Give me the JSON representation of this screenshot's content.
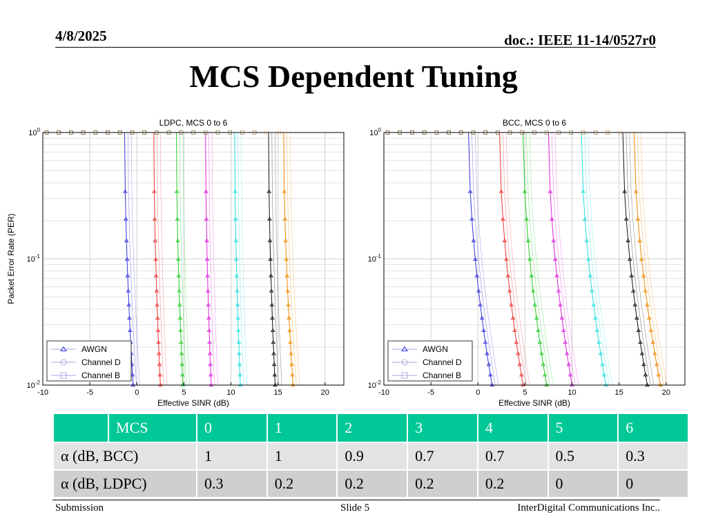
{
  "header": {
    "date": "4/8/2025",
    "doc": "doc.: IEEE 11-14/0527r0"
  },
  "title": "MCS Dependent Tuning",
  "chart_data": [
    {
      "type": "line",
      "title": "LDPC, MCS 0 to 6",
      "xlabel": "Effective SINR (dB)",
      "ylabel": "Packet Error Rate (PER)",
      "xlim": [
        -10,
        22
      ],
      "ylim": [
        0.01,
        1
      ],
      "yscale": "log",
      "grid": true,
      "xticks": [
        "-10",
        "-5",
        "0",
        "5",
        "10",
        "15",
        "20"
      ],
      "yticks": [
        "10^0",
        "10^-1",
        "10^-2"
      ],
      "legend": {
        "position": "bottom-left",
        "entries": [
          "AWGN",
          "Channel D",
          "Channel B"
        ]
      },
      "colors": [
        "#3333dd",
        "#ee3333",
        "#22cc22",
        "#dd22dd",
        "#22dddd",
        "#111111",
        "#ee8800"
      ],
      "series": [
        {
          "name": "MCS 0",
          "x_at_per1": -1.3,
          "x_at_per001": -0.4
        },
        {
          "name": "MCS 1",
          "x_at_per1": 1.8,
          "x_at_per001": 2.5
        },
        {
          "name": "MCS 2",
          "x_at_per1": 4.2,
          "x_at_per001": 4.9
        },
        {
          "name": "MCS 3",
          "x_at_per1": 7.3,
          "x_at_per001": 7.9
        },
        {
          "name": "MCS 4",
          "x_at_per1": 10.4,
          "x_at_per001": 11.0
        },
        {
          "name": "MCS 5",
          "x_at_per1": 14.0,
          "x_at_per001": 14.7
        },
        {
          "name": "MCS 6",
          "x_at_per1": 15.6,
          "x_at_per001": 16.6
        }
      ]
    },
    {
      "type": "line",
      "title": "BCC, MCS 0 to 6",
      "xlabel": "Effective SINR (dB)",
      "ylabel": "",
      "xlim": [
        -10,
        22
      ],
      "ylim": [
        0.01,
        1
      ],
      "yscale": "log",
      "grid": true,
      "xticks": [
        "-10",
        "-5",
        "0",
        "5",
        "10",
        "15",
        "20"
      ],
      "yticks": [
        "10^0",
        "10^-1",
        "10^-2"
      ],
      "legend": {
        "position": "bottom-left",
        "entries": [
          "AWGN",
          "Channel D",
          "Channel B"
        ]
      },
      "colors": [
        "#3333dd",
        "#ee3333",
        "#22cc22",
        "#dd22dd",
        "#22dddd",
        "#111111",
        "#ee8800"
      ],
      "series": [
        {
          "name": "MCS 0",
          "x_at_per1": -1.0,
          "x_at_per001": 1.5
        },
        {
          "name": "MCS 1",
          "x_at_per1": 2.3,
          "x_at_per001": 4.8
        },
        {
          "name": "MCS 2",
          "x_at_per1": 4.8,
          "x_at_per001": 7.3
        },
        {
          "name": "MCS 3",
          "x_at_per1": 7.5,
          "x_at_per001": 10.0
        },
        {
          "name": "MCS 4",
          "x_at_per1": 11.0,
          "x_at_per001": 13.6
        },
        {
          "name": "MCS 5",
          "x_at_per1": 15.4,
          "x_at_per001": 18.0
        },
        {
          "name": "MCS 6",
          "x_at_per1": 16.6,
          "x_at_per001": 19.4
        }
      ]
    }
  ],
  "table": {
    "headers": [
      "",
      "MCS",
      "0",
      "1",
      "2",
      "3",
      "4",
      "5",
      "6"
    ],
    "rows": [
      {
        "label": "α (dB, BCC)",
        "values": [
          "1",
          "1",
          "0.9",
          "0.7",
          "0.7",
          "0.5",
          "0.3"
        ]
      },
      {
        "label": "α (dB, LDPC)",
        "values": [
          "0.3",
          "0.2",
          "0.2",
          "0.2",
          "0.2",
          "0",
          "0"
        ]
      }
    ],
    "header_color": "#00c896"
  },
  "footer": {
    "left": "Submission",
    "center": "Slide 5",
    "right": "InterDigital Communications Inc.."
  }
}
